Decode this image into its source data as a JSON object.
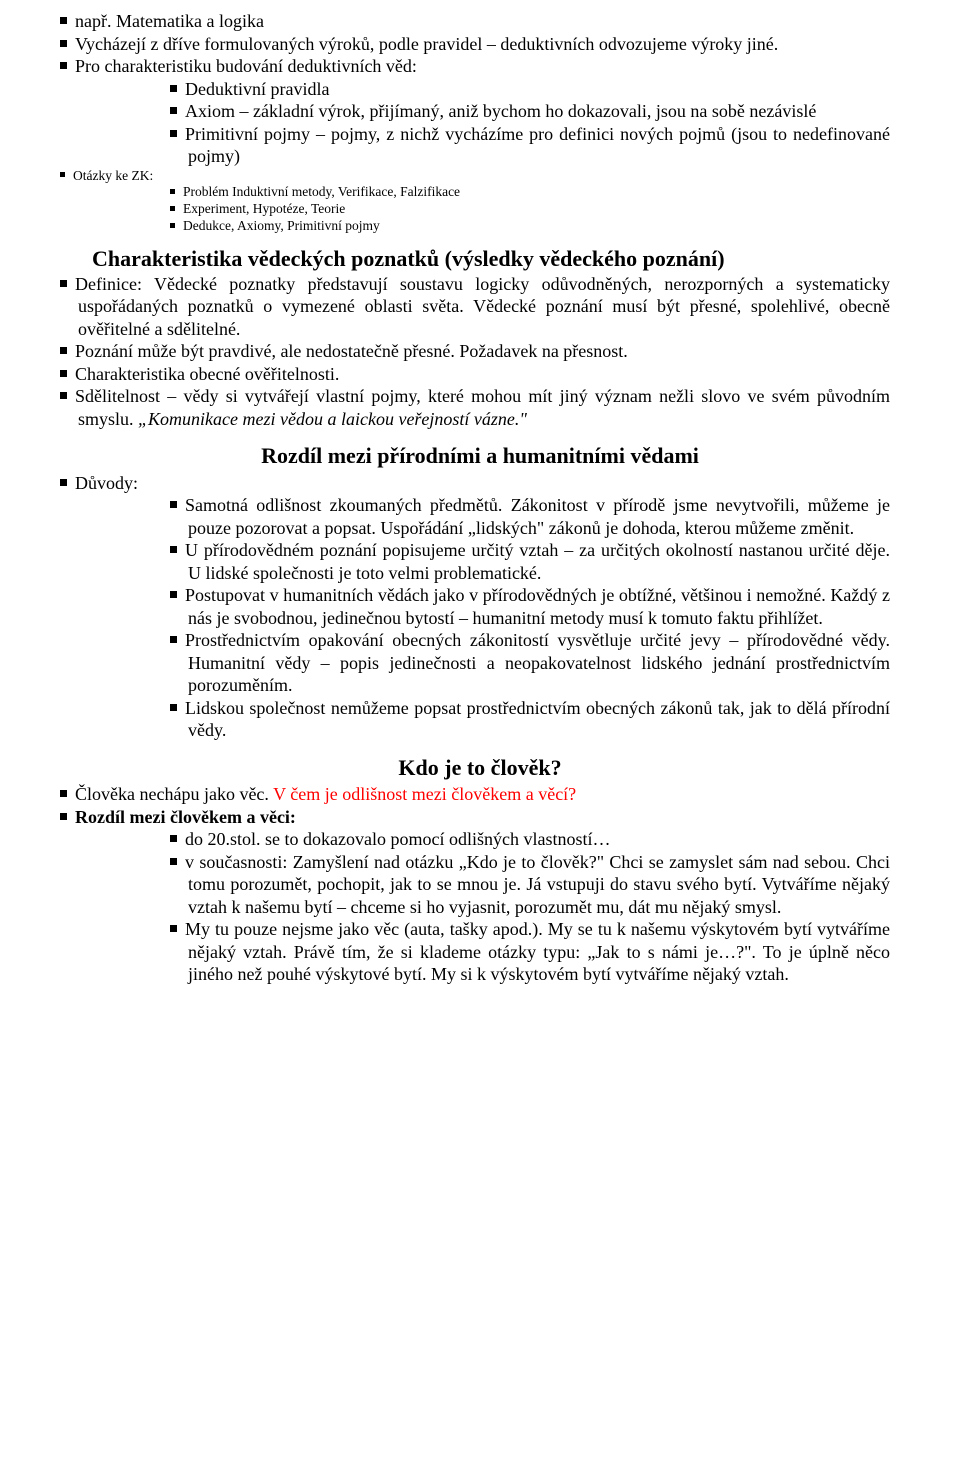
{
  "top": {
    "i0": "např. Matematika a logika",
    "i1": "Vycházejí z dříve formulovaných výroků, podle pravidel – deduktivních odvozujeme výroky jiné.",
    "i2": "Pro charakteristiku budování deduktivních věd:",
    "sub": {
      "a": "Deduktivní pravidla",
      "b": "Axiom – základní výrok, přijímaný, aniž bychom ho dokazovali, jsou na sobě nezávislé",
      "c": "Primitivní pojmy – pojmy, z nichž vycházíme pro definici nových pojmů (jsou to nedefinované pojmy)"
    },
    "ot": "Otázky ke ZK:",
    "otsub": {
      "a": "Problém Induktivní metody, Verifikace, Falzifikace",
      "b": "Experiment, Hypotéze, Teorie",
      "c": "Dedukce, Axiomy, Primitivní pojmy"
    }
  },
  "sec1": {
    "title": "Charakteristika vědeckých poznatků (výsledky vědeckého poznání)",
    "i0": "Definice: Vědecké poznatky představují soustavu logicky odůvodněných, nerozporných a systematicky uspořádaných poznatků o vymezené oblasti světa. Vědecké poznání musí být přesné, spolehlivé, obecně ověřitelné a sdělitelné.",
    "i1": "Poznání může být pravdivé, ale nedostatečně přesné. Požadavek na přesnost.",
    "i2": "Charakteristika obecné ověřitelnosti.",
    "i3a": "Sdělitelnost – vědy si vytvářejí vlastní pojmy, které mohou mít jiný význam nežli slovo ve svém původním smyslu. ",
    "i3b": "„Komunikace mezi vědou a laickou veřejností vázne.\""
  },
  "sec2": {
    "title": "Rozdíl mezi přírodními a humanitními vědami",
    "lead": "Důvody:",
    "a": "Samotná odlišnost zkoumaných předmětů. Zákonitost v přírodě jsme nevytvořili, můžeme je pouze pozorovat a popsat. Uspořádání „lidských\" zákonů je dohoda, kterou můžeme změnit.",
    "b": "U přírodovědném poznání popisujeme určitý vztah – za určitých okolností nastanou určité děje. U lidské společnosti je toto velmi problematické.",
    "c": "Postupovat v humanitních vědách jako v přírodovědných je obtížné, většinou i nemožné. Každý z nás je svobodnou, jedinečnou bytostí – humanitní metody musí k tomuto faktu přihlížet.",
    "d": "Prostřednictvím opakování obecných zákonitostí vysvětluje určité jevy – přírodovědné vědy. Humanitní vědy – popis jedinečnosti a neopakovatelnost lidského jednání prostřednictvím porozuměním.",
    "e": "Lidskou společnost nemůžeme popsat prostřednictvím obecných zákonů tak, jak to dělá přírodní vědy."
  },
  "sec3": {
    "title": "Kdo je to člověk?",
    "i0a": "Člověka nechápu jako věc. ",
    "i0b": "V čem je odlišnost mezi člověkem a věcí?",
    "i1": "Rozdíl mezi člověkem a věci:",
    "a": "do 20.stol. se to dokazovalo pomocí odlišných vlastností…",
    "b": "v současnosti: Zamyšlení nad otázku „Kdo je to člověk?\" Chci se zamyslet sám nad sebou. Chci tomu porozumět, pochopit, jak to se mnou je. Já vstupuji do stavu svého bytí. Vytváříme nějaký vztah k našemu bytí – chceme si ho vyjasnit, porozumět mu, dát mu nějaký smysl.",
    "c": "My tu pouze nejsme jako věc (auta, tašky apod.). My se tu k našemu výskytovém bytí vytváříme nějaký vztah. Právě tím, že si klademe otázky typu: „Jak to s námi je…?\". To je úplně něco jiného než pouhé výskytové bytí. My si k výskytovém bytí vytváříme nějaký vztah."
  }
}
